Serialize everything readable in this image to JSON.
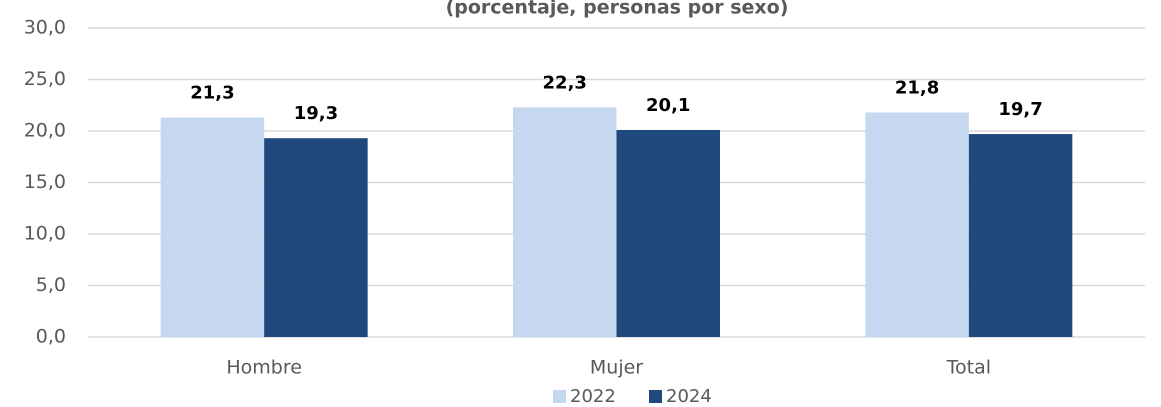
{
  "chart_data": {
    "type": "bar",
    "subtitle": "(porcentaje, personas por sexo)",
    "categories": [
      "Hombre",
      "Mujer",
      "Total"
    ],
    "series": [
      {
        "name": "2022",
        "color": "#c6d8f0",
        "values": [
          21.3,
          22.3,
          21.8
        ],
        "value_labels": [
          "21,3",
          "22,3",
          "21,8"
        ]
      },
      {
        "name": "2024",
        "color": "#1f497d",
        "values": [
          19.3,
          20.1,
          19.7
        ],
        "value_labels": [
          "19,3",
          "20,1",
          "19,7"
        ]
      }
    ],
    "ylim": [
      0,
      30
    ],
    "yticks": [
      {
        "value": 0,
        "label": "0,0"
      },
      {
        "value": 5,
        "label": "5,0"
      },
      {
        "value": 10,
        "label": "10,0"
      },
      {
        "value": 15,
        "label": "15,0"
      },
      {
        "value": 20,
        "label": "20,0"
      },
      {
        "value": 25,
        "label": "25,0"
      },
      {
        "value": 30,
        "label": "30,0"
      }
    ],
    "grid": true,
    "legend": "bottom"
  }
}
